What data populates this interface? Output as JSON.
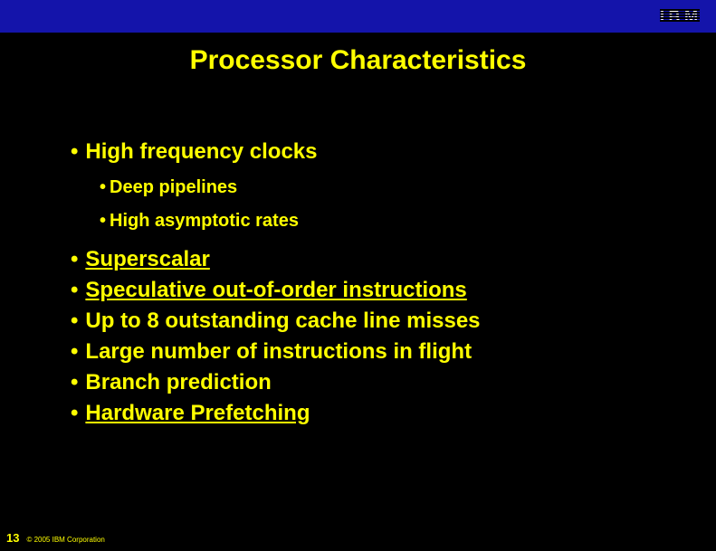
{
  "colors": {
    "background": "#000000",
    "topbar": "#1414aa",
    "text": "#ffff00",
    "logo": "#ffffff"
  },
  "logo": {
    "name": "IBM"
  },
  "title": "Processor Characteristics",
  "bullets": {
    "main1": "High frequency clocks",
    "sub1": "Deep pipelines",
    "sub2": "High asymptotic rates",
    "items": [
      {
        "text": "Superscalar",
        "underline": true
      },
      {
        "text": "Speculative out-of-order instructions",
        "underline": true
      },
      {
        "text": "Up to 8 outstanding cache line misses",
        "underline": false
      },
      {
        "text": "Large number of instructions in flight",
        "underline": false
      },
      {
        "text": "Branch prediction",
        "underline": false
      },
      {
        "text": "Hardware Prefetching",
        "underline": true
      }
    ]
  },
  "footer": {
    "page": "13",
    "copyright": "© 2005 IBM Corporation"
  },
  "typography": {
    "title_fontsize": 30,
    "level1_fontsize": 24,
    "level2_fontsize": 20,
    "font_family": "Arial",
    "font_weight": "bold"
  }
}
